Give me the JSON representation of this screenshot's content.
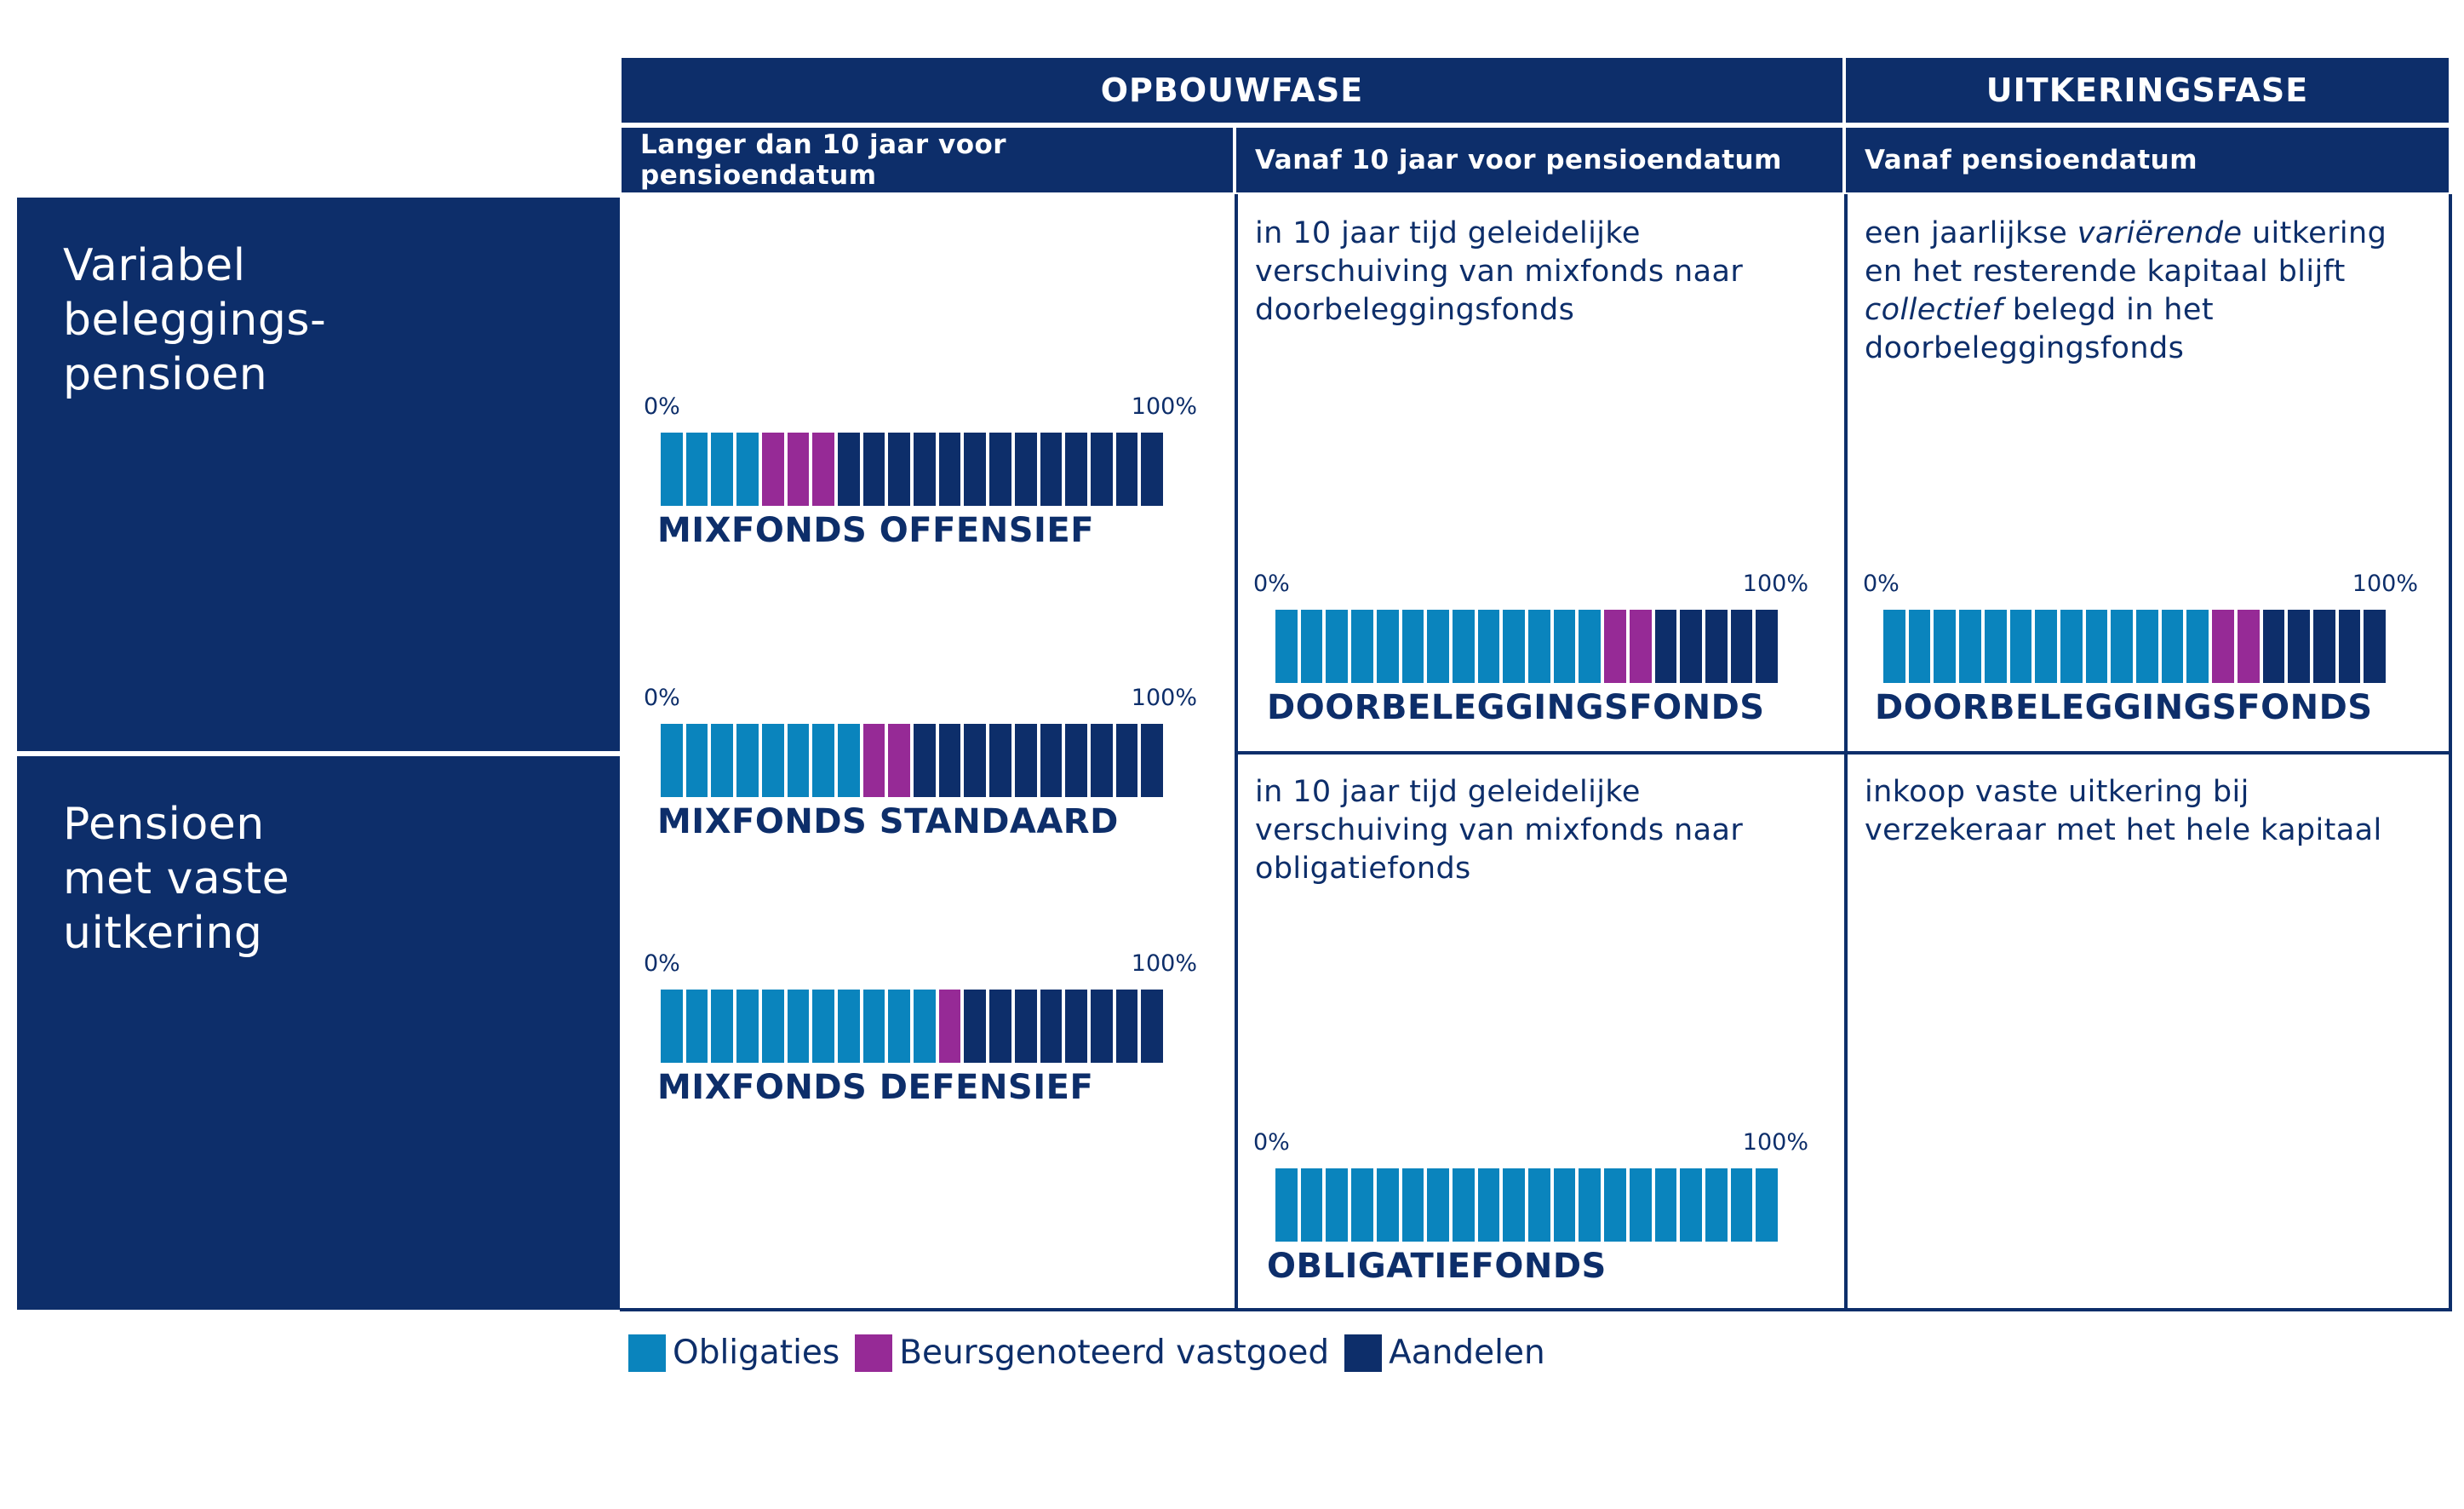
{
  "header": {
    "opbouwfase": "OPBOUWFASE",
    "uitkeringsfase": "UITKERINGSFASE",
    "sub_col1": "Langer dan 10 jaar voor pensioendatum",
    "sub_col2": "Vanaf 10 jaar voor pensioendatum",
    "sub_col3": "Vanaf pensioendatum"
  },
  "rows": {
    "variabel": "Variabel beleggings- pensioen",
    "vast": "Pensioen met vaste uitkering"
  },
  "cells": {
    "variabel_col2": "in 10 jaar tijd geleidelijke verschuiving van mixfonds naar doorbeleggingsfonds",
    "variabel_col3_a": "een jaarlijkse ",
    "variabel_col3_b": "variërende",
    "variabel_col3_c": " uitkering en het resterende kapitaal blijft ",
    "variabel_col3_d": "collectief",
    "variabel_col3_e": " belegd in het doorbeleggingsfonds",
    "vast_col2": "in 10 jaar tijd geleidelijke verschuiving van mixfonds naar obligatiefonds",
    "vast_col3": "inkoop vaste uitkering bij verzekeraar met het hele kapitaal"
  },
  "scale": {
    "min": "0%",
    "max": "100%"
  },
  "colors": {
    "navy": "#0d2e6a",
    "obligaties": "#0a84bd",
    "vastgoed": "#962a96",
    "aandelen": "#0d2e6a"
  },
  "chart_data": [
    {
      "type": "bar",
      "name": "MIXFONDS OFFENSIEF",
      "segments": 20,
      "composition": {
        "Obligaties": 4,
        "Beursgenoteerd vastgoed": 3,
        "Aandelen": 13
      }
    },
    {
      "type": "bar",
      "name": "MIXFONDS STANDAARD",
      "segments": 20,
      "composition": {
        "Obligaties": 8,
        "Beursgenoteerd vastgoed": 2,
        "Aandelen": 10
      }
    },
    {
      "type": "bar",
      "name": "MIXFONDS DEFENSIEF",
      "segments": 20,
      "composition": {
        "Obligaties": 11,
        "Beursgenoteerd vastgoed": 1,
        "Aandelen": 8
      }
    },
    {
      "type": "bar",
      "name": "DOORBELEGGINGSFONDS",
      "segments": 20,
      "composition": {
        "Obligaties": 13,
        "Beursgenoteerd vastgoed": 2,
        "Aandelen": 5
      }
    },
    {
      "type": "bar",
      "name": "DOORBELEGGINGSFONDS",
      "segments": 20,
      "composition": {
        "Obligaties": 13,
        "Beursgenoteerd vastgoed": 2,
        "Aandelen": 5
      }
    },
    {
      "type": "bar",
      "name": "OBLIGATIEFONDS",
      "segments": 20,
      "composition": {
        "Obligaties": 20,
        "Beursgenoteerd vastgoed": 0,
        "Aandelen": 0
      }
    }
  ],
  "legend": [
    {
      "label": "Obligaties",
      "color": "#0a84bd"
    },
    {
      "label": "Beursgenoteerd vastgoed",
      "color": "#962a96"
    },
    {
      "label": "Aandelen",
      "color": "#0d2e6a"
    }
  ]
}
